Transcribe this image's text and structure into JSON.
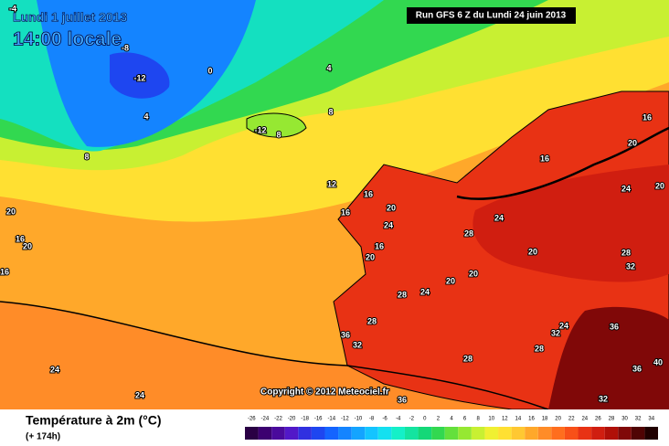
{
  "header": {
    "date": "Lundi 1 juillet 2013",
    "time": "14:00 locale",
    "run": "Run GFS 6 Z du Lundi 24 juin 2013"
  },
  "copyright": "Copyright © 2012 Meteociel.fr",
  "footer": {
    "title": "Température à 2m (°C)",
    "lead": "(+ 174h)"
  },
  "scale": {
    "labels": [
      -26,
      -24,
      -22,
      -20,
      -18,
      -16,
      -14,
      -12,
      -10,
      -8,
      -6,
      -4,
      -2,
      0,
      2,
      4,
      6,
      8,
      10,
      12,
      14,
      16,
      18,
      20,
      22,
      24,
      26,
      28,
      30,
      32,
      34
    ],
    "colors": [
      "#2a0044",
      "#3c0070",
      "#4a0a9c",
      "#5218c8",
      "#3030e0",
      "#1e46f0",
      "#1464ff",
      "#1484ff",
      "#14a4ff",
      "#14c4ff",
      "#14e0f0",
      "#14f0c8",
      "#14e4a0",
      "#14d878",
      "#32d850",
      "#64e03c",
      "#96e832",
      "#c8f032",
      "#f0f032",
      "#ffe032",
      "#ffc832",
      "#ffa82a",
      "#ff8c28",
      "#ff6e1e",
      "#f85018",
      "#e83214",
      "#d01e10",
      "#b01008",
      "#800808",
      "#500404",
      "#200000"
    ]
  },
  "contour_labels": [
    -4,
    -12,
    -8,
    0,
    4,
    4,
    8,
    8,
    -12,
    8,
    12,
    16,
    20,
    16,
    24,
    16,
    20,
    20,
    16,
    20,
    16,
    28,
    24,
    16,
    20,
    24,
    20,
    28,
    20,
    16,
    28,
    24,
    20,
    20,
    28,
    36,
    32,
    24,
    24,
    28,
    32,
    36,
    40,
    36,
    32,
    28,
    24,
    36,
    32
  ]
}
